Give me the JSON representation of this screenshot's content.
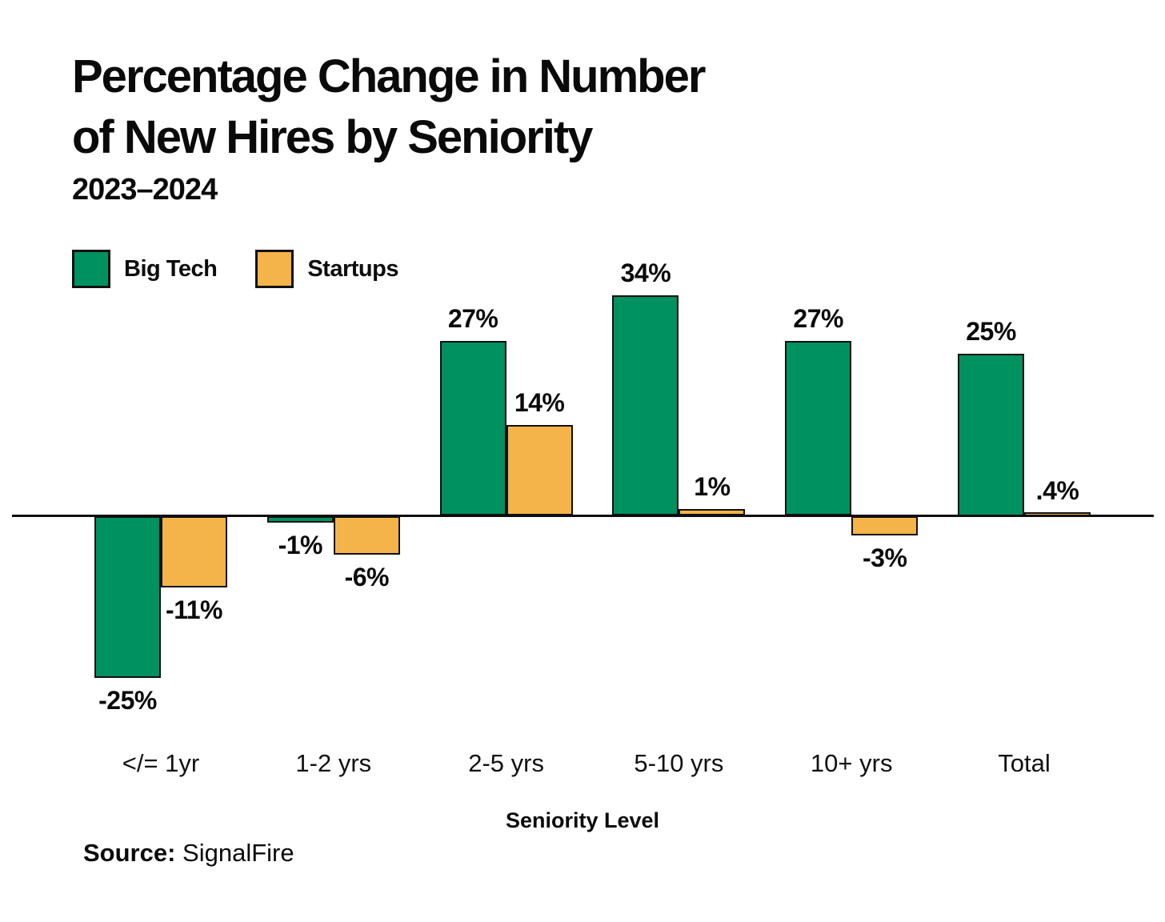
{
  "title": {
    "line1": "Percentage Change in Number",
    "line2": "of New Hires by Seniority"
  },
  "subtitle": "2023–2024",
  "xaxis": {
    "label": "Seniority Level"
  },
  "source": {
    "prefix": "Source:",
    "text": " SignalFire"
  },
  "chart_data": {
    "type": "bar",
    "title": "Percentage Change in Number of New Hires by Seniority",
    "subtitle": "2023–2024",
    "categories": [
      "</= 1yr",
      "1-2 yrs",
      "2-5 yrs",
      "5-10 yrs",
      "10+ yrs",
      "Total"
    ],
    "series": [
      {
        "name": "Big Tech",
        "color": "#009160",
        "values": [
          -25,
          -1,
          27,
          34,
          27,
          25
        ],
        "labels": [
          "-25%",
          "-1%",
          "27%",
          "34%",
          "27%",
          "25%"
        ]
      },
      {
        "name": "Startups",
        "color": "#F4B44A",
        "values": [
          -11,
          -6,
          14,
          1,
          -3,
          0.4
        ],
        "labels": [
          "-11%",
          "-6%",
          "14%",
          "1%",
          "-3%",
          ".4%"
        ]
      }
    ],
    "xlabel": "Seniority Level",
    "ylabel": "Percentage change",
    "ylim": [
      -30,
      40
    ],
    "baseline": 0,
    "grid": false,
    "legend_position": "top-left",
    "value_labels_shown": true
  }
}
